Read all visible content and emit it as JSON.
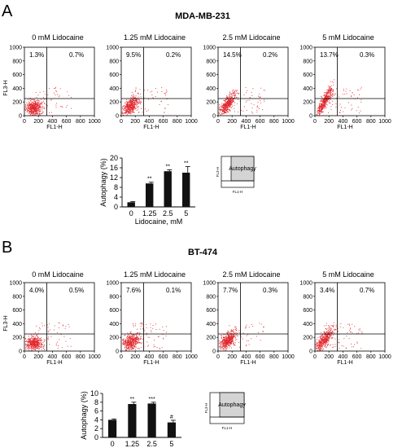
{
  "panels": [
    {
      "letter": "A",
      "cell_line": "MDA-MB-231",
      "scatter": [
        {
          "title": "0 mM Lidocaine",
          "ul": "1.3%",
          "ur": "0.7%"
        },
        {
          "title": "1.25 mM Lidocaine",
          "ul": "9.5%",
          "ur": "0.2%"
        },
        {
          "title": "2.5 mM Lidocaine",
          "ul": "14.5%",
          "ur": "0.2%"
        },
        {
          "title": "5 mM Lidocaine",
          "ul": "13.7%",
          "ur": "0.3%"
        }
      ],
      "bar_sig": [
        "",
        "**",
        "**",
        "**"
      ]
    },
    {
      "letter": "B",
      "cell_line": "BT-474",
      "scatter": [
        {
          "title": "0 mM Lidocaine",
          "ul": "4.0%",
          "ur": "0.5%"
        },
        {
          "title": "1.25 mM Lidocaine",
          "ul": "7.6%",
          "ur": "0.1%"
        },
        {
          "title": "2.5 mM Lidocaine",
          "ul": "7.7%",
          "ur": "0.3%"
        },
        {
          "title": "5 mM Lidocaine",
          "ul": "3.4%",
          "ur": "0.7%"
        }
      ],
      "bar_sig": [
        "",
        "**",
        "***",
        "#"
      ]
    }
  ],
  "scatter_axes": {
    "xlabel": "FL1-H",
    "ylabel": "FL3-H",
    "x_ticks": [
      0,
      200,
      400,
      600,
      800,
      1000
    ],
    "y_ticks": [
      0,
      200,
      400,
      600,
      800,
      1000
    ]
  },
  "inset": {
    "label": "Autophagy",
    "xlabel": "FL1-H",
    "ylabel": "FL3-H"
  },
  "colors": {
    "dots": "#e0242a",
    "bars": "#111111",
    "inset_fill": "#d4d4d4"
  },
  "chart_data": [
    {
      "type": "bar",
      "categories": [
        "0",
        "1.25",
        "2.5",
        "5"
      ],
      "values": [
        1.9,
        9.6,
        14.6,
        14.0
      ],
      "errors": [
        0.3,
        0.5,
        0.6,
        2.5
      ],
      "xlabel": "Lidocaine, mM",
      "ylabel": "Autophagy (%)",
      "ylim": [
        0,
        20
      ],
      "yticks": [
        0,
        4,
        8,
        12,
        16,
        20
      ]
    },
    {
      "type": "bar",
      "categories": [
        "0",
        "1.25",
        "2.5",
        "5"
      ],
      "values": [
        4.0,
        7.6,
        7.7,
        3.4
      ],
      "errors": [
        0.2,
        0.4,
        0.3,
        0.5
      ],
      "xlabel": "Lidocaine, mM",
      "ylabel": "Autophagy (%)",
      "ylim": [
        0,
        10
      ],
      "yticks": [
        0,
        2,
        4,
        6,
        8,
        10
      ]
    }
  ]
}
